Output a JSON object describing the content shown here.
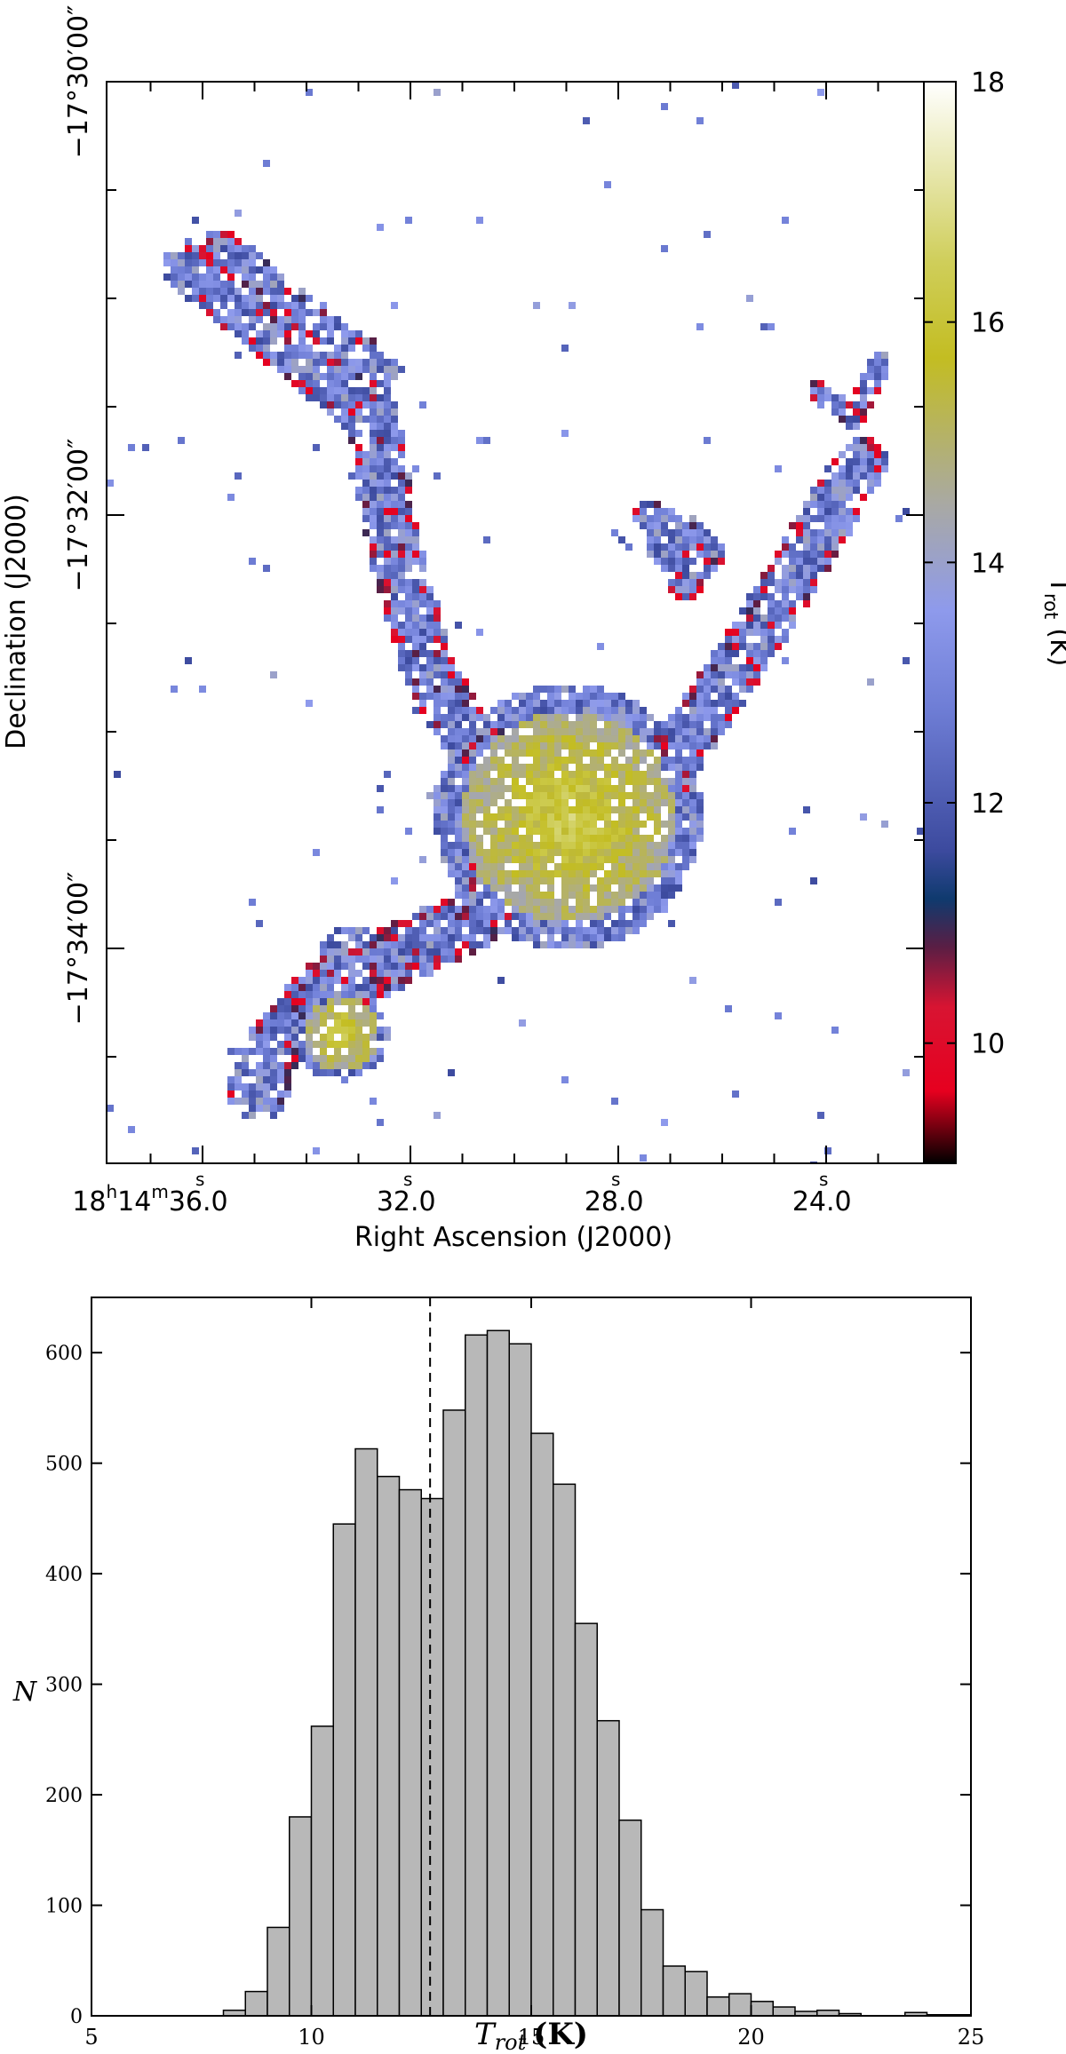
{
  "chart_data": [
    {
      "type": "heatmap",
      "xlabel": "Right Ascension (J2000)",
      "ylabel": "Declination (J2000)",
      "x_ticks": [
        {
          "h": "18",
          "m": "14",
          "s": "36",
          "frac": ".0",
          "value_s": 36.0
        },
        {
          "s": "32",
          "frac": ".0",
          "value_s": 32.0
        },
        {
          "s": "28",
          "frac": ".0",
          "value_s": 28.0
        },
        {
          "s": "24",
          "frac": ".0",
          "value_s": 24.0
        }
      ],
      "y_ticks": [
        {
          "label": "−17°30′00″",
          "value_arcmin": 0
        },
        {
          "label": "−17°32′00″",
          "value_arcmin": 2
        },
        {
          "label": "−17°34′00″",
          "value_arcmin": 4
        }
      ],
      "colorbar": {
        "label_main": "T",
        "label_sub": "rot",
        "label_unit": "(K)",
        "range": [
          9,
          18
        ],
        "ticks": [
          10,
          12,
          14,
          16,
          18
        ],
        "colormap": [
          {
            "v": 9.0,
            "color": "#000000"
          },
          {
            "v": 9.6,
            "color": "#e6001f"
          },
          {
            "v": 10.3,
            "color": "#d81432"
          },
          {
            "v": 10.8,
            "color": "#5a1e44"
          },
          {
            "v": 11.2,
            "color": "#0f3a6e"
          },
          {
            "v": 11.6,
            "color": "#3c4a9e"
          },
          {
            "v": 12.8,
            "color": "#6f7ed6"
          },
          {
            "v": 13.6,
            "color": "#8e9aec"
          },
          {
            "v": 14.5,
            "color": "#a9a9a2"
          },
          {
            "v": 15.7,
            "color": "#c3bd22"
          },
          {
            "v": 16.5,
            "color": "#cfce5a"
          },
          {
            "v": 18.0,
            "color": "#ffffff"
          }
        ]
      }
    },
    {
      "type": "bar",
      "xlabel_main": "T",
      "xlabel_sub": "rot",
      "xlabel_unit": "(K)",
      "ylabel": "N",
      "xlim": [
        5,
        25
      ],
      "ylim": [
        0,
        650
      ],
      "x_ticks": [
        5,
        10,
        15,
        20,
        25
      ],
      "y_ticks": [
        0,
        100,
        200,
        300,
        400,
        500,
        600
      ],
      "bin_width": 0.5,
      "bin_starts": [
        8.0,
        8.5,
        9.0,
        9.5,
        10.0,
        10.5,
        11.0,
        11.5,
        12.0,
        12.5,
        13.0,
        13.5,
        14.0,
        14.5,
        15.0,
        15.5,
        16.0,
        16.5,
        17.0,
        17.5,
        18.0,
        18.5,
        19.0,
        19.5,
        20.0,
        20.5,
        21.0,
        21.5,
        22.0,
        22.5,
        23.0,
        23.5,
        24.0,
        24.5
      ],
      "counts": [
        5,
        22,
        80,
        180,
        262,
        445,
        513,
        488,
        476,
        468,
        548,
        616,
        620,
        608,
        527,
        481,
        355,
        267,
        177,
        96,
        45,
        40,
        17,
        20,
        13,
        8,
        4,
        5,
        2,
        0,
        0,
        3,
        1,
        1
      ],
      "mean_line_x": 12.7,
      "bar_color": "#b8b8b8"
    }
  ]
}
